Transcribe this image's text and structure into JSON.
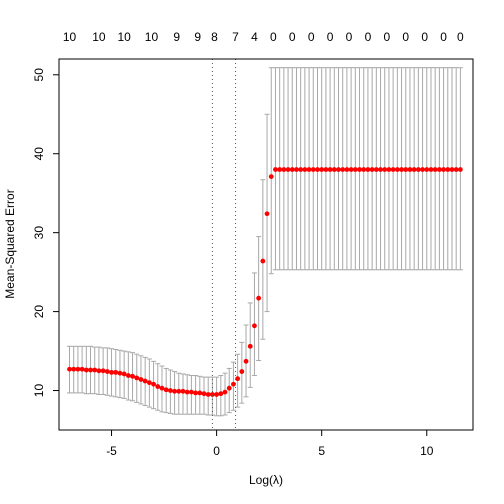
{
  "chart_data": {
    "type": "scatter",
    "title": "",
    "xlabel": "Log(λ)",
    "ylabel": "Mean-Squared Error",
    "xlim": [
      -7.5,
      12.2
    ],
    "ylim": [
      5.0,
      52.0
    ],
    "x_ticks": [
      "-5",
      "0",
      "5",
      "10"
    ],
    "x_tick_values": [
      -5,
      0,
      5,
      10
    ],
    "y_ticks": [
      "10",
      "20",
      "30",
      "40",
      "50"
    ],
    "y_tick_values": [
      10,
      20,
      30,
      40,
      50
    ],
    "top_axis_labels": [
      "10",
      "10",
      "10",
      "10",
      "9",
      "9",
      "8",
      "7",
      "4",
      "0",
      "0",
      "0",
      "0",
      "0",
      "0",
      "0",
      "0",
      "0",
      "0",
      "0"
    ],
    "top_axis_positions": [
      -7.0,
      -5.6,
      -4.4,
      -3.1,
      -1.9,
      -0.9,
      -0.1,
      0.9,
      1.8,
      2.7,
      3.6,
      4.5,
      5.4,
      6.3,
      7.2,
      8.1,
      9.0,
      9.9,
      10.8,
      11.6
    ],
    "vlines": [
      -0.2,
      0.9
    ],
    "point_color": "#ff0000",
    "errorbar_color": "#a8a8a8",
    "series": [
      {
        "x": [
          -7.0,
          -6.8,
          -6.6,
          -6.4,
          -6.2,
          -6.0,
          -5.8,
          -5.6,
          -5.4,
          -5.2,
          -5.0,
          -4.8,
          -4.6,
          -4.4,
          -4.2,
          -4.0,
          -3.8,
          -3.6,
          -3.4,
          -3.2,
          -3.0,
          -2.8,
          -2.6,
          -2.4,
          -2.2,
          -2.0,
          -1.8,
          -1.6,
          -1.4,
          -1.2,
          -1.0,
          -0.8,
          -0.6,
          -0.4,
          -0.2,
          0.0,
          0.2,
          0.4,
          0.6,
          0.8,
          1.0,
          1.2,
          1.4,
          1.6,
          1.8,
          2.0,
          2.2,
          2.4,
          2.6,
          2.8,
          3.0,
          3.2,
          3.4,
          3.6,
          3.8,
          4.0,
          4.2,
          4.4,
          4.6,
          4.8,
          5.0,
          5.2,
          5.4,
          5.6,
          5.8,
          6.0,
          6.2,
          6.4,
          6.6,
          6.8,
          7.0,
          7.2,
          7.4,
          7.6,
          7.8,
          8.0,
          8.2,
          8.4,
          8.6,
          8.8,
          9.0,
          9.2,
          9.4,
          9.6,
          9.8,
          10.0,
          10.2,
          10.4,
          10.6,
          10.8,
          11.0,
          11.2,
          11.4,
          11.6
        ],
        "y": [
          12.7,
          12.7,
          12.7,
          12.7,
          12.6,
          12.6,
          12.6,
          12.5,
          12.5,
          12.4,
          12.3,
          12.3,
          12.2,
          12.1,
          11.9,
          11.8,
          11.6,
          11.4,
          11.2,
          11.0,
          10.8,
          10.5,
          10.3,
          10.1,
          10.0,
          9.9,
          9.9,
          9.9,
          9.8,
          9.8,
          9.7,
          9.7,
          9.6,
          9.5,
          9.5,
          9.5,
          9.6,
          9.8,
          10.3,
          10.8,
          11.5,
          12.4,
          13.7,
          15.6,
          18.2,
          21.7,
          26.4,
          32.4,
          37.1,
          38.0,
          38.0,
          38.0,
          38.0,
          38.0,
          38.0,
          38.0,
          38.0,
          38.0,
          38.0,
          38.0,
          38.0,
          38.0,
          38.0,
          38.0,
          38.0,
          38.0,
          38.0,
          38.0,
          38.0,
          38.0,
          38.0,
          38.0,
          38.0,
          38.0,
          38.0,
          38.0,
          38.0,
          38.0,
          38.0,
          38.0,
          38.0,
          38.0,
          38.0,
          38.0,
          38.0,
          38.0,
          38.0,
          38.0,
          38.0,
          38.0,
          38.0,
          38.0,
          38.0,
          38.0
        ],
        "lower": [
          9.7,
          9.7,
          9.7,
          9.7,
          9.6,
          9.6,
          9.6,
          9.5,
          9.5,
          9.4,
          9.3,
          9.2,
          9.1,
          9.0,
          8.8,
          8.7,
          8.5,
          8.3,
          8.1,
          7.9,
          7.7,
          7.5,
          7.3,
          7.2,
          7.1,
          7.0,
          7.0,
          7.0,
          7.0,
          7.0,
          7.0,
          7.0,
          7.0,
          6.9,
          6.9,
          6.8,
          6.8,
          6.9,
          7.2,
          7.5,
          7.9,
          8.4,
          9.2,
          10.4,
          11.9,
          13.8,
          16.5,
          20.0,
          24.8,
          25.3,
          25.3,
          25.3,
          25.3,
          25.3,
          25.3,
          25.3,
          25.3,
          25.3,
          25.3,
          25.3,
          25.3,
          25.3,
          25.3,
          25.3,
          25.3,
          25.3,
          25.3,
          25.3,
          25.3,
          25.3,
          25.3,
          25.3,
          25.3,
          25.3,
          25.3,
          25.3,
          25.3,
          25.3,
          25.3,
          25.3,
          25.3,
          25.3,
          25.3,
          25.3,
          25.3,
          25.3,
          25.3,
          25.3,
          25.3,
          25.3,
          25.3,
          25.3,
          25.3,
          25.3
        ],
        "upper": [
          15.6,
          15.6,
          15.6,
          15.6,
          15.6,
          15.6,
          15.5,
          15.5,
          15.4,
          15.4,
          15.3,
          15.2,
          15.1,
          15.0,
          14.9,
          14.8,
          14.6,
          14.4,
          14.2,
          14.0,
          13.7,
          13.4,
          13.1,
          12.8,
          12.6,
          12.4,
          12.2,
          12.1,
          12.0,
          11.9,
          11.9,
          11.8,
          11.7,
          11.7,
          11.7,
          11.7,
          11.9,
          12.2,
          12.8,
          13.6,
          14.6,
          16.1,
          18.3,
          21.1,
          24.9,
          29.5,
          36.7,
          45.0,
          50.9,
          50.9,
          50.9,
          50.9,
          50.9,
          50.9,
          50.9,
          50.9,
          50.9,
          50.9,
          50.9,
          50.9,
          50.9,
          50.9,
          50.9,
          50.9,
          50.9,
          50.9,
          50.9,
          50.9,
          50.9,
          50.9,
          50.9,
          50.9,
          50.9,
          50.9,
          50.9,
          50.9,
          50.9,
          50.9,
          50.9,
          50.9,
          50.9,
          50.9,
          50.9,
          50.9,
          50.9,
          50.9,
          50.9,
          50.9,
          50.9,
          50.9,
          50.9,
          50.9,
          50.9,
          50.9
        ]
      }
    ]
  }
}
